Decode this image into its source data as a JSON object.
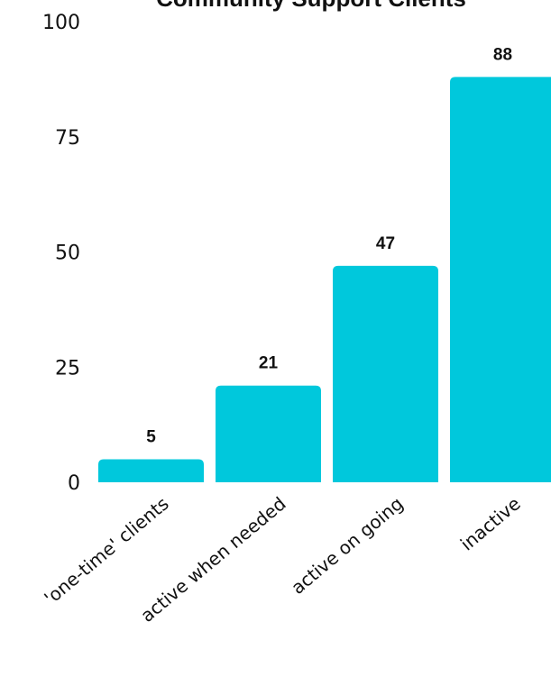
{
  "chart_data": {
    "type": "bar",
    "title": "Community Support Clients",
    "xlabel": "",
    "ylabel": "",
    "categories": [
      "'one-time' clients",
      "active when needed",
      "active on going",
      "inactive"
    ],
    "values": [
      5,
      21,
      47,
      88
    ],
    "data_labels": [
      "5",
      "21",
      "47",
      "88"
    ],
    "yticks": [
      "0",
      "25",
      "50",
      "75",
      "100"
    ],
    "ylim": [
      0,
      100
    ],
    "grid": false,
    "legend": "none",
    "colors": {
      "bar": "#00C8DC",
      "text": "#111111"
    }
  }
}
